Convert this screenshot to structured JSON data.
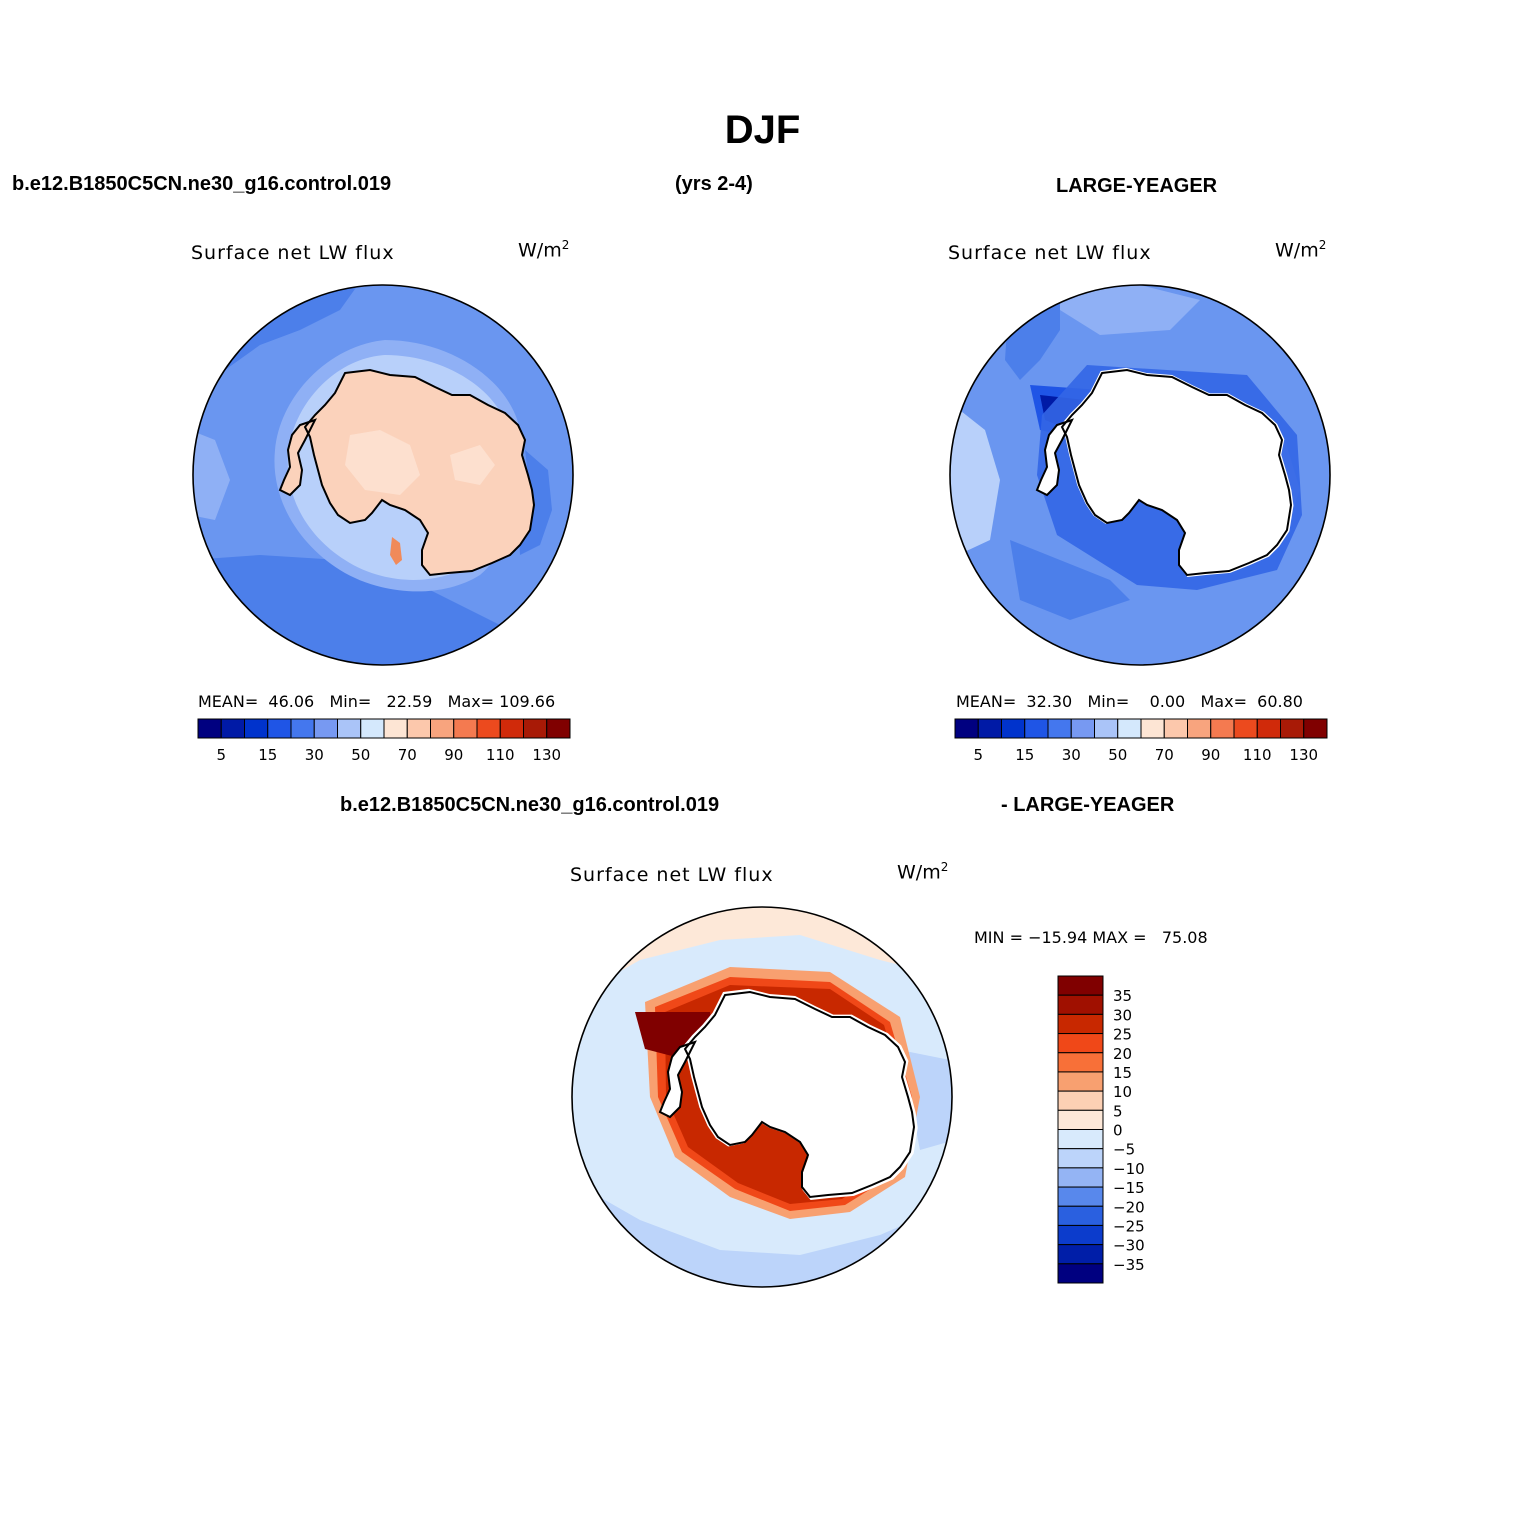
{
  "page": {
    "title": "DJF",
    "header_case": "b.e12.B1850C5CN.ne30_g16.control.019",
    "header_years": "(yrs 2-4)",
    "header_obs": "LARGE-YEAGER",
    "diff_case": "b.e12.B1850C5CN.ne30_g16.control.019",
    "diff_obs": "- LARGE-YEAGER"
  },
  "panels": [
    {
      "id": "model",
      "title": "Surface net LW flux",
      "units": "W/m",
      "units_sup": "2",
      "stats_text": "MEAN=  46.06   Min=   22.59   Max= 109.66"
    },
    {
      "id": "obs",
      "title": "Surface net LW flux",
      "units": "W/m",
      "units_sup": "2",
      "stats_text": "MEAN=  32.30   Min=    0.00   Max=  60.80"
    },
    {
      "id": "diff",
      "title": "Surface net LW flux",
      "units": "W/m",
      "units_sup": "2",
      "stats_text": "MIN = −15.94 MAX =   75.08"
    }
  ],
  "colorbar_abs": {
    "colors": [
      "#000080",
      "#001aa6",
      "#0033cc",
      "#1f55e6",
      "#4477ee",
      "#7799f2",
      "#aac4f8",
      "#d4e8fc",
      "#fde5d4",
      "#fcc8ac",
      "#f8a47e",
      "#f47a50",
      "#ec4a1e",
      "#d02a0a",
      "#a81a06",
      "#800000"
    ],
    "labels": [
      "5",
      "15",
      "30",
      "50",
      "70",
      "90",
      "110",
      "130"
    ]
  },
  "colorbar_diff": {
    "colors": [
      "#800000",
      "#a01000",
      "#c82800",
      "#f04818",
      "#f87038",
      "#f8a070",
      "#fcd0b4",
      "#fde8d8",
      "#d8eafc",
      "#bcd4fa",
      "#94b4f4",
      "#5888ec",
      "#2a60e0",
      "#0c3ccc",
      "#001ea8",
      "#000080"
    ],
    "labels": [
      "35",
      "30",
      "25",
      "20",
      "15",
      "10",
      "5",
      "0",
      "−5",
      "−10",
      "−15",
      "−20",
      "−25",
      "−30",
      "−35"
    ]
  }
}
